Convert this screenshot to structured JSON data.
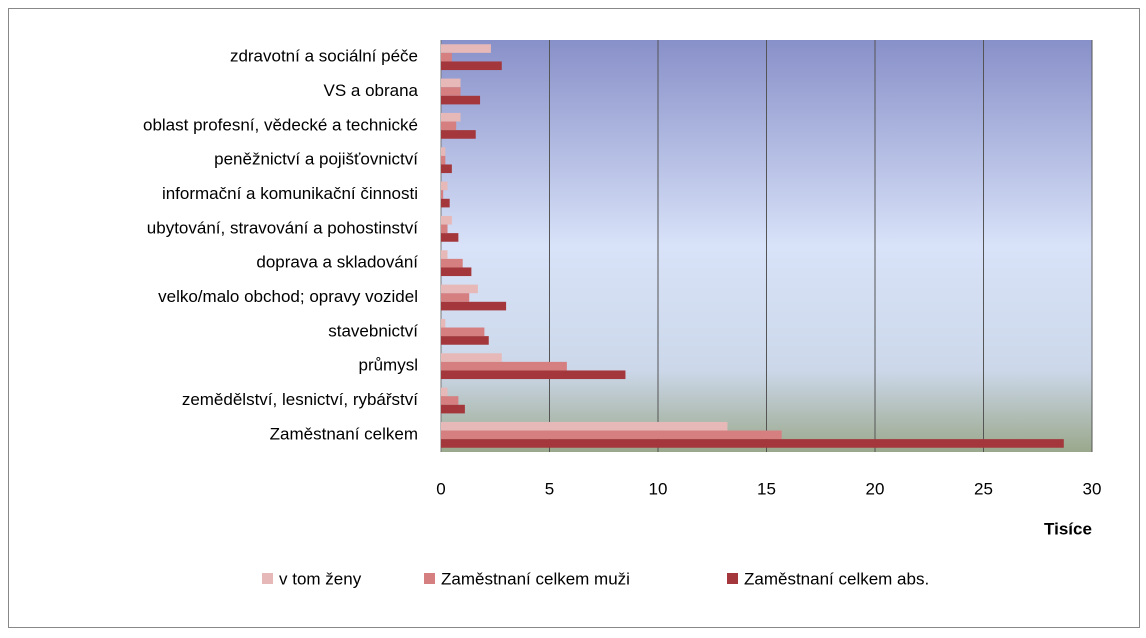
{
  "chart_data": {
    "type": "bar",
    "orientation": "horizontal",
    "categories": [
      "Zaměstnaní celkem",
      "zemědělství, lesnictví, rybářství",
      "průmysl",
      "stavebnictví",
      "velko/malo obchod; opravy vozidel",
      "doprava a skladování",
      "ubytování, stravování a pohostinství",
      "informační a komunikační činnosti",
      "peněžnictví a pojišťovnictví",
      "oblast profesní, vědecké a technické",
      "VS a obrana",
      "zdravotní a sociální péče"
    ],
    "series": [
      {
        "name": "v tom ženy",
        "color": "#e6b9b8",
        "values": [
          13.2,
          0.3,
          2.8,
          0.2,
          1.7,
          0.3,
          0.5,
          0.3,
          0.2,
          0.9,
          0.9,
          2.3
        ]
      },
      {
        "name": "Zaměstnaní celkem muži",
        "color": "#d57f80",
        "values": [
          15.7,
          0.8,
          5.8,
          2.0,
          1.3,
          1.0,
          0.3,
          0.1,
          0.2,
          0.7,
          0.9,
          0.5
        ]
      },
      {
        "name": "Zaměstnaní celkem abs.",
        "color": "#a3373b",
        "values": [
          28.7,
          1.1,
          8.5,
          2.2,
          3.0,
          1.4,
          0.8,
          0.4,
          0.5,
          1.6,
          1.8,
          2.8
        ]
      }
    ],
    "x_label": "Tisíce",
    "xlim": [
      0,
      30
    ],
    "xticks": [
      0,
      5,
      10,
      15,
      20,
      25,
      30
    ],
    "grid": true,
    "legend": "bottom"
  }
}
